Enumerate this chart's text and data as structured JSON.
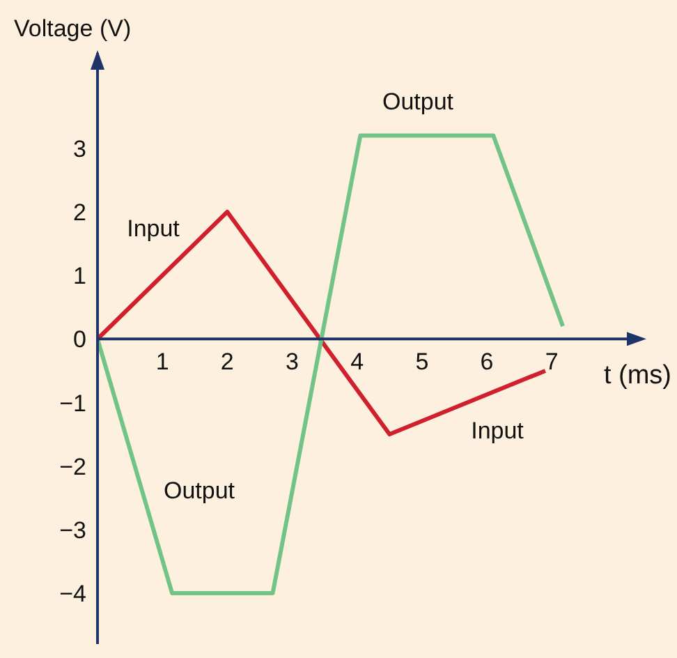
{
  "chart_data": {
    "type": "line",
    "xlabel": "t (ms)",
    "ylabel": "Voltage (V)",
    "xlim": [
      0,
      8.2
    ],
    "xticks": [
      1,
      2,
      3,
      4,
      5,
      6,
      7
    ],
    "ylim": [
      -4.8,
      4.5
    ],
    "yticks": [
      {
        "value": -4,
        "label": "−4"
      },
      {
        "value": -3,
        "label": "−3"
      },
      {
        "value": -2,
        "label": "−2"
      },
      {
        "value": -1,
        "label": "−1"
      },
      {
        "value": 0,
        "label": "0"
      },
      {
        "value": 1,
        "label": "1"
      },
      {
        "value": 2,
        "label": "2"
      },
      {
        "value": 3,
        "label": "3"
      }
    ],
    "series": [
      {
        "color": "#d0202e",
        "x": [
          0,
          2,
          4.5,
          6.9
        ],
        "values": [
          0,
          2,
          -1.5,
          -0.5
        ]
      },
      {
        "color": "#72c387",
        "x": [
          0,
          1.15,
          2.7,
          4.05,
          6.1,
          7.17
        ],
        "values": [
          0,
          -4,
          -4,
          3.2,
          3.2,
          0.2
        ]
      }
    ],
    "annotations": [
      "Input",
      "Output",
      "Input",
      "Output"
    ]
  }
}
